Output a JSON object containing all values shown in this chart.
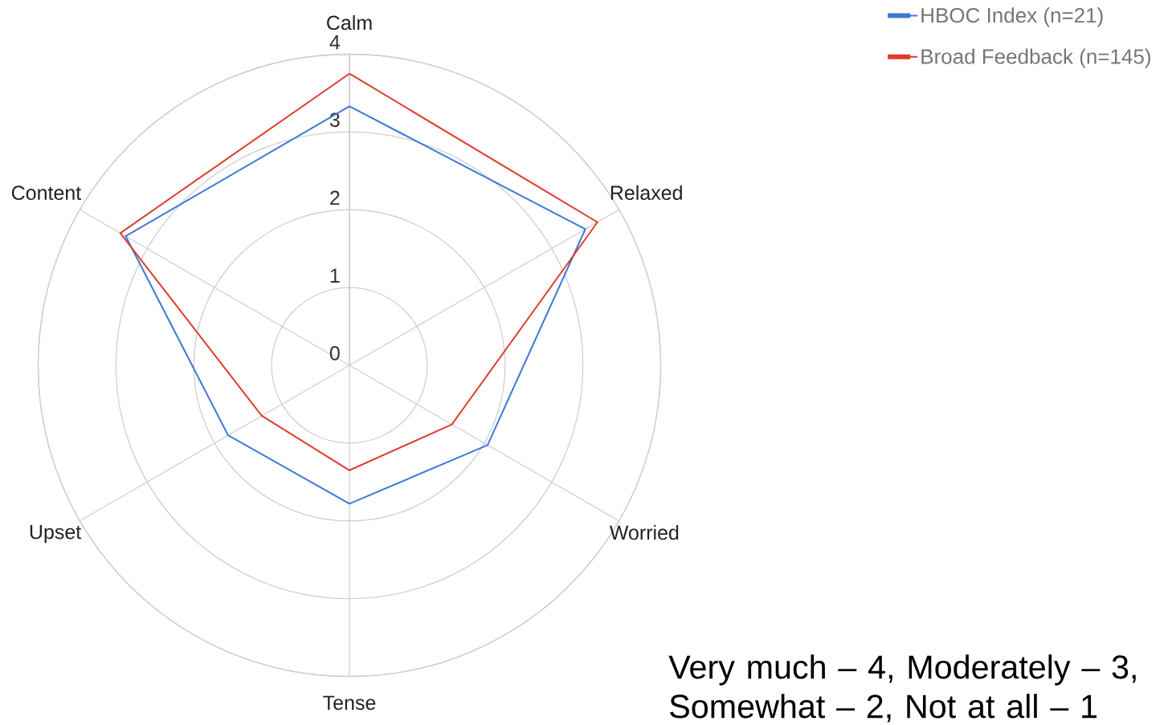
{
  "chart_data": {
    "type": "radar",
    "categories": [
      "Calm",
      "Relaxed",
      "Worried",
      "Tense",
      "Upset",
      "Content"
    ],
    "series": [
      {
        "name": "HBOC Index (n=21)",
        "color": "#3f79d6",
        "values": [
          3.33,
          3.5,
          2.05,
          1.78,
          1.8,
          3.32
        ]
      },
      {
        "name": "Broad Feedback (n=145)",
        "color": "#dd3d2f",
        "values": [
          3.75,
          3.68,
          1.52,
          1.35,
          1.3,
          3.4
        ]
      }
    ],
    "ylim": [
      0,
      4
    ],
    "yticks": [
      0,
      1,
      2,
      3,
      4
    ],
    "grid": true,
    "legend": "top right",
    "annotations": [
      "Very much – 4, Moderately – 3, Somewhat – 2, Not at all – 1"
    ]
  }
}
